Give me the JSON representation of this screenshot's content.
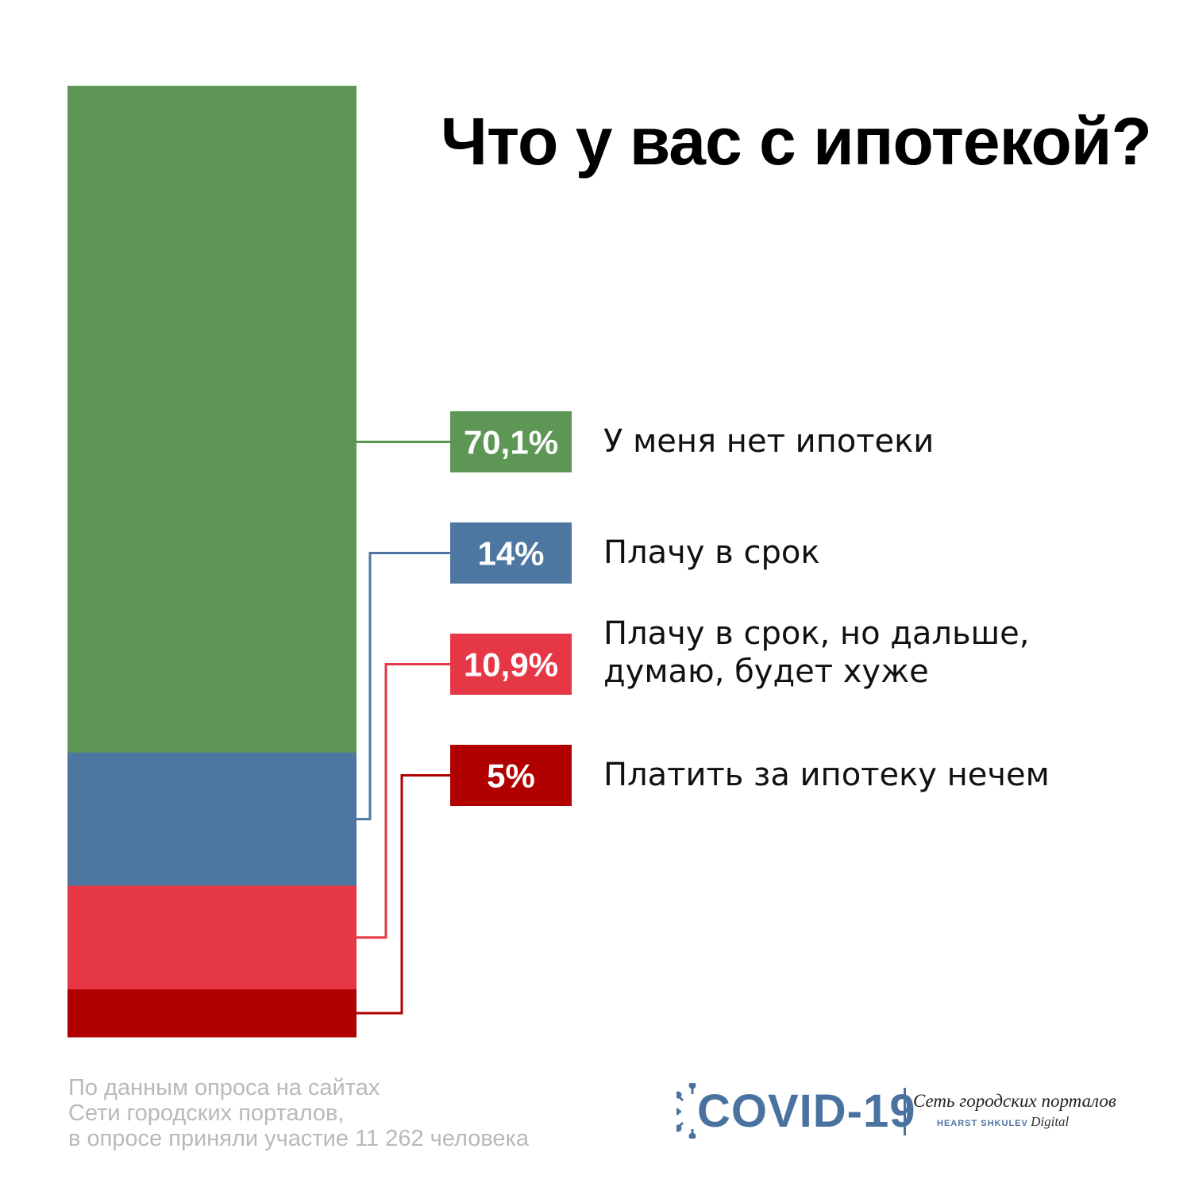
{
  "title": "Что у вас с ипотекой?",
  "chart_data": {
    "type": "bar",
    "stacked": true,
    "title": "Что у вас с ипотекой?",
    "unit": "%",
    "series": [
      {
        "label": "У меня нет ипотеки",
        "value": 70.1,
        "value_label": "70,1%",
        "color": "#5e9656"
      },
      {
        "label": "Плачу в срок",
        "value": 14,
        "value_label": "14%",
        "color": "#4d77a0"
      },
      {
        "label": "Плачу в срок, но дальше,\nдумаю, будет хуже",
        "value": 10.9,
        "value_label": "10,9%",
        "color": "#e63746"
      },
      {
        "label": "Платить за ипотеку нечем",
        "value": 5,
        "value_label": "5%",
        "color": "#b10000"
      }
    ]
  },
  "footnote": "По данным опроса на сайтах\nСети городских порталов,\nв опросе приняли участие 11 262 человека",
  "logo": {
    "icon": "virus-icon",
    "main": "COVID-19",
    "network": "Сеть городских порталов",
    "brand": "HEARST SHKULEV",
    "brand_suffix": "Digital",
    "color": "#4a72a0"
  }
}
